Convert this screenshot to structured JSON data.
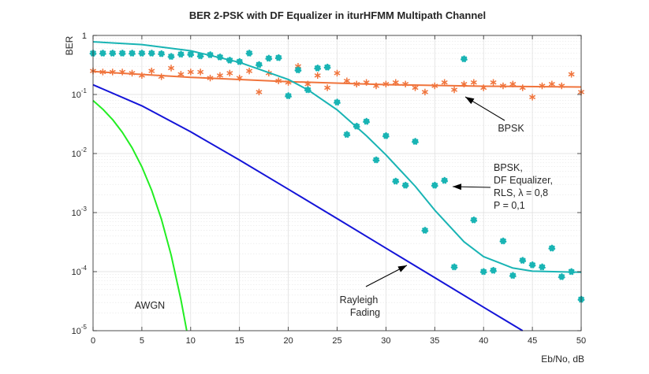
{
  "chart_data": {
    "type": "line",
    "title": "BER 2-PSK with DF Equalizer in iturHFMM Multipath Channel",
    "xlabel": "Eb/No, dB",
    "ylabel": "BER",
    "xlim": [
      0,
      50
    ],
    "ylim": [
      1e-05,
      1
    ],
    "yscale": "log",
    "grid": true,
    "x_ticks": [
      0,
      5,
      10,
      15,
      20,
      25,
      30,
      35,
      40,
      45,
      50
    ],
    "x_tick_labels": [
      "0",
      "5",
      "10",
      "15",
      "20",
      "25",
      "30",
      "35",
      "40",
      "45",
      "50"
    ],
    "y_ticks": [
      1e-05,
      0.0001,
      0.001,
      0.01,
      0.1,
      1
    ],
    "y_tick_labels": [
      {
        "base": "10",
        "exp": "-5"
      },
      {
        "base": "10",
        "exp": "-4"
      },
      {
        "base": "10",
        "exp": "-3"
      },
      {
        "base": "10",
        "exp": "-2"
      },
      {
        "base": "10",
        "exp": "-1"
      },
      {
        "base": "1",
        "exp": ""
      }
    ],
    "colors": {
      "awgn": "#22ee22",
      "rayleigh": "#1414d8",
      "bpsk": "#f0743c",
      "equalizer": "#19b4b4"
    },
    "series": [
      {
        "key": "awgn",
        "style": "line",
        "x": [
          0,
          1,
          2,
          3,
          4,
          5,
          6,
          7,
          8,
          9,
          9.6
        ],
        "y": [
          0.0786,
          0.0563,
          0.0375,
          0.0229,
          0.0125,
          0.00595,
          0.00239,
          0.000773,
          0.000191,
          3.36e-05,
          1e-05
        ]
      },
      {
        "key": "rayleigh",
        "style": "line",
        "x": [
          0,
          5,
          10,
          15,
          20,
          25,
          30,
          35,
          40,
          44
        ],
        "y": [
          0.146,
          0.0642,
          0.0233,
          0.00776,
          0.00249,
          0.000792,
          0.00025,
          7.91e-05,
          2.5e-05,
          1e-05
        ]
      },
      {
        "key": "bpsk_fit",
        "style": "line",
        "color_key": "bpsk",
        "x": [
          0,
          10,
          20,
          30,
          40,
          50
        ],
        "y": [
          0.245,
          0.195,
          0.165,
          0.147,
          0.138,
          0.134
        ]
      },
      {
        "key": "bpsk_sim",
        "style": "asterisk",
        "color_key": "bpsk",
        "x": [
          0,
          1,
          2,
          3,
          4,
          5,
          6,
          7,
          8,
          9,
          10,
          11,
          12,
          13,
          14,
          15,
          16,
          17,
          18,
          19,
          20,
          21,
          22,
          23,
          24,
          25,
          26,
          27,
          28,
          29,
          30,
          31,
          32,
          33,
          34,
          35,
          36,
          37,
          38,
          39,
          40,
          41,
          42,
          43,
          44,
          45,
          46,
          47,
          48,
          49,
          50
        ],
        "y": [
          0.25,
          0.24,
          0.24,
          0.24,
          0.23,
          0.21,
          0.25,
          0.2,
          0.28,
          0.22,
          0.24,
          0.24,
          0.19,
          0.21,
          0.23,
          0.19,
          0.25,
          0.11,
          0.23,
          0.17,
          0.16,
          0.3,
          0.15,
          0.21,
          0.13,
          0.23,
          0.17,
          0.15,
          0.16,
          0.14,
          0.15,
          0.16,
          0.15,
          0.13,
          0.11,
          0.14,
          0.16,
          0.12,
          0.15,
          0.16,
          0.13,
          0.16,
          0.14,
          0.15,
          0.13,
          0.09,
          0.14,
          0.15,
          0.14,
          0.22,
          0.11
        ]
      },
      {
        "key": "equalizer_fit",
        "style": "line",
        "color_key": "equalizer",
        "x": [
          0,
          5,
          10,
          15,
          20,
          22,
          25,
          28,
          30,
          33,
          35,
          38,
          40,
          43,
          45,
          48,
          50
        ],
        "y": [
          0.78,
          0.7,
          0.55,
          0.35,
          0.18,
          0.12,
          0.055,
          0.02,
          0.0095,
          0.0028,
          0.0011,
          0.00032,
          0.00018,
          0.000115,
          0.000102,
          9.9e-05,
          9.8e-05
        ]
      },
      {
        "key": "equalizer_sim",
        "style": "dot",
        "color_key": "equalizer",
        "x": [
          0,
          1,
          2,
          3,
          4,
          5,
          6,
          7,
          8,
          9,
          10,
          11,
          12,
          13,
          14,
          15,
          16,
          17,
          18,
          19,
          20,
          21,
          22,
          23,
          24,
          25,
          26,
          27,
          28,
          29,
          30,
          31,
          32,
          33,
          34,
          35,
          36,
          37,
          38,
          39,
          40,
          41,
          42,
          43,
          44,
          45,
          46,
          47,
          48,
          49,
          50
        ],
        "y": [
          0.5,
          0.5,
          0.5,
          0.5,
          0.5,
          0.5,
          0.5,
          0.49,
          0.44,
          0.48,
          0.48,
          0.45,
          0.47,
          0.43,
          0.38,
          0.36,
          0.5,
          0.32,
          0.41,
          0.42,
          0.095,
          0.26,
          0.12,
          0.28,
          0.29,
          0.074,
          0.021,
          0.029,
          0.035,
          0.0078,
          0.02,
          0.0034,
          0.0029,
          0.016,
          0.0005,
          0.0029,
          0.0035,
          0.00012,
          0.4,
          0.00075,
          0.0001,
          0.000105,
          0.00033,
          8.6e-05,
          0.000155,
          0.00013,
          0.00012,
          0.00025,
          8.2e-05,
          0.0001,
          3.4e-05
        ]
      }
    ],
    "annotations": [
      {
        "key": "awgn_label",
        "lines": [
          "AWGN"
        ]
      },
      {
        "key": "rayleigh_label",
        "lines": [
          "Rayleigh",
          "Fading"
        ]
      },
      {
        "key": "bpsk_label",
        "lines": [
          "BPSK"
        ]
      },
      {
        "key": "equalizer_label",
        "lines": [
          "BPSK,",
          "DF Equalizer,",
          "RLS, λ = 0,8",
          "P = 0,1"
        ]
      }
    ]
  }
}
